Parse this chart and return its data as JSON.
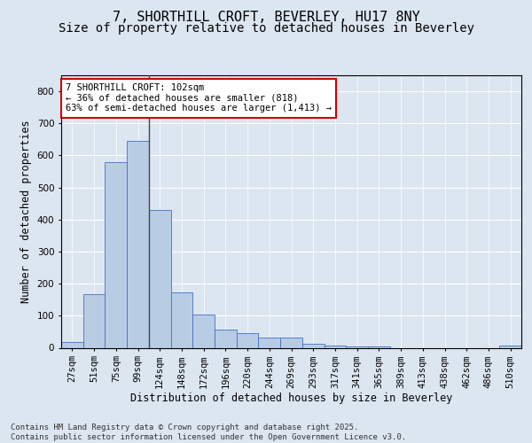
{
  "title1": "7, SHORTHILL CROFT, BEVERLEY, HU17 8NY",
  "title2": "Size of property relative to detached houses in Beverley",
  "xlabel": "Distribution of detached houses by size in Beverley",
  "ylabel": "Number of detached properties",
  "categories": [
    "27sqm",
    "51sqm",
    "75sqm",
    "99sqm",
    "124sqm",
    "148sqm",
    "172sqm",
    "196sqm",
    "220sqm",
    "244sqm",
    "269sqm",
    "293sqm",
    "317sqm",
    "341sqm",
    "365sqm",
    "389sqm",
    "413sqm",
    "438sqm",
    "462sqm",
    "486sqm",
    "510sqm"
  ],
  "values": [
    18,
    168,
    580,
    645,
    430,
    172,
    103,
    57,
    45,
    32,
    32,
    13,
    8,
    5,
    5,
    0,
    0,
    0,
    0,
    0,
    7
  ],
  "bar_color": "#b8cce4",
  "bar_edge_color": "#4472c4",
  "background_color": "#dce6f1",
  "plot_bg_color": "#dce6f1",
  "grid_color": "#ffffff",
  "annotation_line1": "7 SHORTHILL CROFT: 102sqm",
  "annotation_line2": "← 36% of detached houses are smaller (818)",
  "annotation_line3": "63% of semi-detached houses are larger (1,413) →",
  "annotation_box_color": "#ffffff",
  "annotation_box_edge_color": "#cc0000",
  "vline_x_index": 3,
  "ylim": [
    0,
    850
  ],
  "yticks": [
    0,
    100,
    200,
    300,
    400,
    500,
    600,
    700,
    800
  ],
  "footnote": "Contains HM Land Registry data © Crown copyright and database right 2025.\nContains public sector information licensed under the Open Government Licence v3.0.",
  "title_fontsize": 11,
  "subtitle_fontsize": 10,
  "axis_label_fontsize": 8.5,
  "tick_fontsize": 7.5,
  "annotation_fontsize": 7.5,
  "footnote_fontsize": 6.5
}
